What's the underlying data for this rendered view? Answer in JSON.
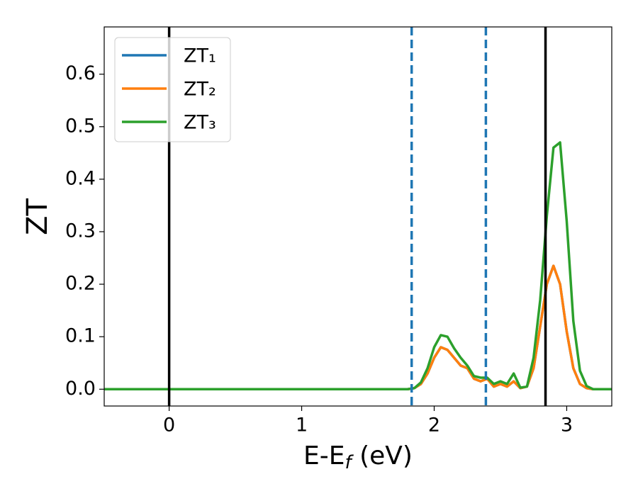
{
  "chart_data": {
    "type": "line",
    "xlabel": {
      "text": "E-E",
      "sub": "f",
      "tail": " (eV)"
    },
    "ylabel": "ZT",
    "xlim": [
      -0.49,
      3.34
    ],
    "ylim": [
      -0.032,
      0.69
    ],
    "xticks": [
      0,
      1,
      2,
      3
    ],
    "yticks": [
      {
        "value": 0,
        "label": "0.0"
      },
      0.1,
      0.2,
      0.3,
      0.4,
      0.5,
      0.6
    ],
    "legend": "upper left",
    "x": [
      -0.49,
      1.7,
      1.8,
      1.85,
      1.9,
      1.95,
      2.0,
      2.05,
      2.1,
      2.15,
      2.2,
      2.25,
      2.3,
      2.35,
      2.4,
      2.45,
      2.5,
      2.55,
      2.6,
      2.65,
      2.7,
      2.75,
      2.8,
      2.85,
      2.9,
      2.95,
      3.0,
      3.05,
      3.1,
      3.15,
      3.2,
      3.34
    ],
    "series": [
      {
        "name": "ZT₁",
        "color": "#1f77b4",
        "values": [
          0,
          0,
          0,
          0.002,
          0.01,
          0.03,
          0.06,
          0.08,
          0.075,
          0.06,
          0.045,
          0.04,
          0.02,
          0.015,
          0.02,
          0.005,
          0.01,
          0.005,
          0.015,
          0.002,
          0.005,
          0.04,
          0.12,
          0.2,
          0.235,
          0.2,
          0.11,
          0.04,
          0.01,
          0.002,
          0,
          0
        ]
      },
      {
        "name": "ZT₂",
        "color": "#ff7f0e",
        "values": [
          0,
          0,
          0,
          0.002,
          0.01,
          0.03,
          0.06,
          0.08,
          0.075,
          0.06,
          0.045,
          0.04,
          0.02,
          0.015,
          0.02,
          0.005,
          0.01,
          0.005,
          0.015,
          0.002,
          0.005,
          0.04,
          0.12,
          0.2,
          0.235,
          0.2,
          0.11,
          0.04,
          0.01,
          0.002,
          0,
          0
        ]
      },
      {
        "name": "ZT₃",
        "color": "#2ca02c",
        "values": [
          0,
          0,
          0,
          0.002,
          0.013,
          0.04,
          0.08,
          0.103,
          0.1,
          0.078,
          0.06,
          0.045,
          0.025,
          0.022,
          0.022,
          0.01,
          0.015,
          0.01,
          0.03,
          0.003,
          0.005,
          0.06,
          0.17,
          0.33,
          0.46,
          0.47,
          0.32,
          0.13,
          0.035,
          0.006,
          0,
          0
        ]
      }
    ],
    "vlines": [
      {
        "x": 0,
        "color": "#000000",
        "style": "solid"
      },
      {
        "x": 2.84,
        "color": "#000000",
        "style": "solid"
      },
      {
        "x": 1.83,
        "color": "#1f77b4",
        "style": "dashed"
      },
      {
        "x": 2.39,
        "color": "#1f77b4",
        "style": "dashed"
      }
    ]
  }
}
